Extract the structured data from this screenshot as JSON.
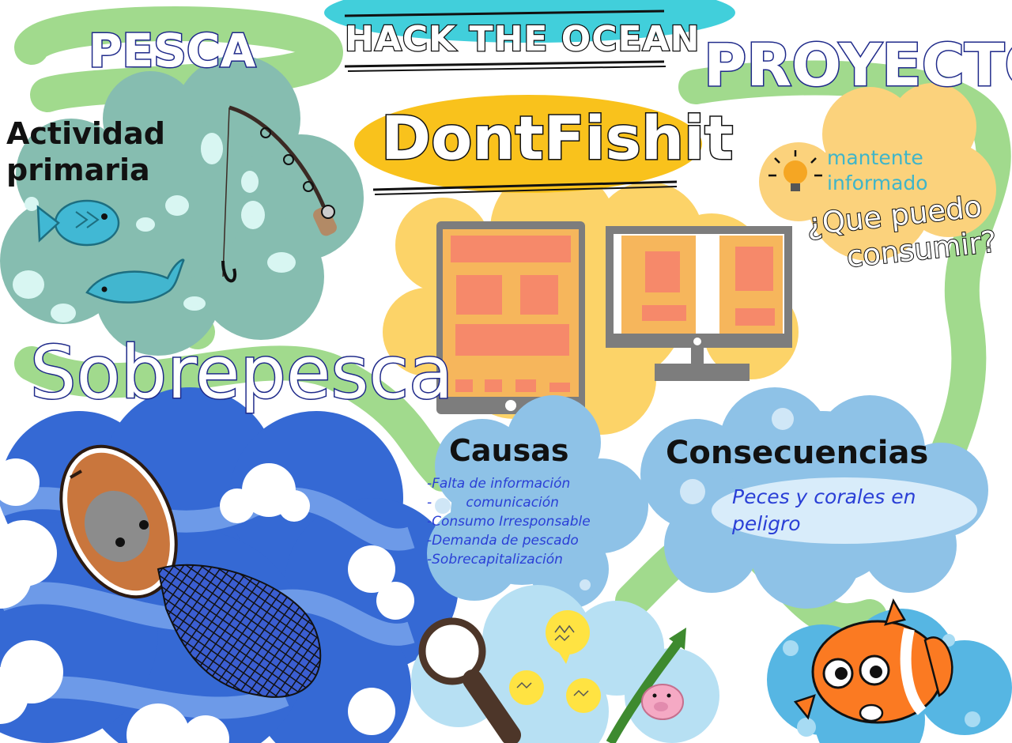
{
  "banner": {
    "title": "HACK THE OCEAN"
  },
  "left": {
    "heading": "PESCA",
    "activity_line1": "Actividad",
    "activity_line2": "primaria",
    "overfishing": "Sobrepesca"
  },
  "center": {
    "app_name": "DontFishit"
  },
  "right": {
    "heading": "PROYECTO",
    "keep_informed_line1": "mantente",
    "keep_informed_line2": "informado",
    "question_line1": "¿Que puedo",
    "question_line2": "consumir?"
  },
  "causes": {
    "heading": "Causas",
    "items": [
      "-Falta de información",
      "-        comunicación",
      "-Consumo Irresponsable",
      "-Demanda de pescado",
      "-Sobrecapitalización"
    ]
  },
  "consequences": {
    "heading": "Consecuencias",
    "line1": "Peces y corales en",
    "line2": "peligro"
  },
  "colors": {
    "path_green": "#9fd98c",
    "teal_cloud": "#85bdb0",
    "yellow": "#fcd266",
    "gold_oval": "#f9c21c",
    "ocean_blue": "#3569d4",
    "light_blue": "#8ec2e6",
    "screen_orange": "#f6b55c",
    "block_salmon": "#f6896a",
    "title_outline": "#1f2a8a",
    "hand_blue": "#2a3fd6"
  },
  "icons": [
    "fishing-rod-icon",
    "fish-icon",
    "dolphin-icon",
    "tablet-icon",
    "monitor-icon",
    "lightbulb-icon",
    "boat-icon",
    "net-icon",
    "magnifier-icon",
    "chat-bubble-icon",
    "piggy-bank-icon",
    "growth-arrow-icon",
    "clownfish-icon"
  ]
}
